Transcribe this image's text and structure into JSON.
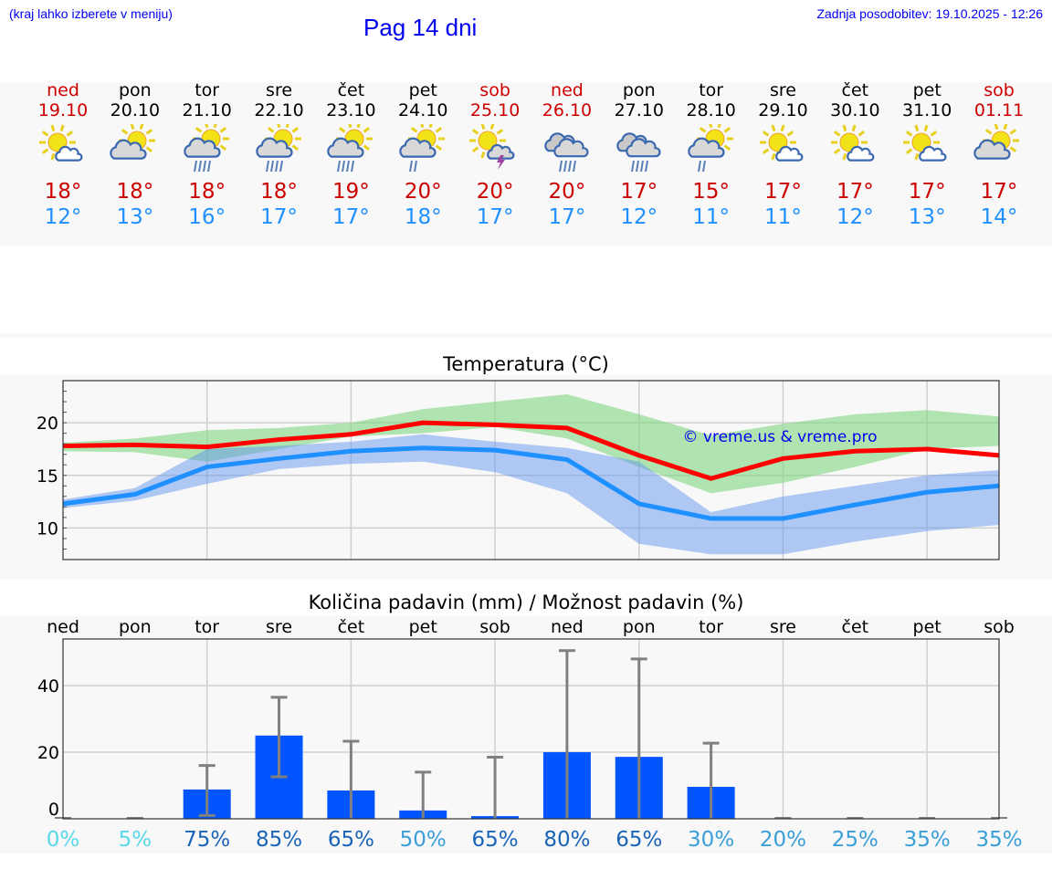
{
  "header": {
    "hint": "(kraj lahko izberete v meniju)",
    "title": "Pag 14 dni",
    "updated": "Zadnja posodobitev: 19.10.2025 - 12:26"
  },
  "days": [
    {
      "name": "ned",
      "date": "19.10",
      "icon": "sun-cloud-small",
      "max": "18°",
      "min": "12°",
      "weekend": true
    },
    {
      "name": "pon",
      "date": "20.10",
      "icon": "cloud-sun",
      "max": "18°",
      "min": "13°",
      "weekend": false
    },
    {
      "name": "tor",
      "date": "21.10",
      "icon": "sun-cloud-rain-heavy",
      "max": "18°",
      "min": "16°",
      "weekend": false
    },
    {
      "name": "sre",
      "date": "22.10",
      "icon": "sun-cloud-rain-heavy",
      "max": "18°",
      "min": "17°",
      "weekend": false
    },
    {
      "name": "čet",
      "date": "23.10",
      "icon": "sun-cloud-rain-heavy",
      "max": "19°",
      "min": "17°",
      "weekend": false
    },
    {
      "name": "pet",
      "date": "24.10",
      "icon": "sun-cloud-rain-light",
      "max": "20°",
      "min": "18°",
      "weekend": false
    },
    {
      "name": "sob",
      "date": "25.10",
      "icon": "sun-thunder",
      "max": "20°",
      "min": "17°",
      "weekend": true
    },
    {
      "name": "ned",
      "date": "26.10",
      "icon": "overcast-rain",
      "max": "20°",
      "min": "17°",
      "weekend": true
    },
    {
      "name": "pon",
      "date": "27.10",
      "icon": "overcast-rain",
      "max": "17°",
      "min": "12°",
      "weekend": false
    },
    {
      "name": "tor",
      "date": "28.10",
      "icon": "sun-cloud-rain-light",
      "max": "15°",
      "min": "11°",
      "weekend": false
    },
    {
      "name": "sre",
      "date": "29.10",
      "icon": "sun-cloud-small",
      "max": "17°",
      "min": "11°",
      "weekend": false
    },
    {
      "name": "čet",
      "date": "30.10",
      "icon": "sun-cloud-small",
      "max": "17°",
      "min": "12°",
      "weekend": false
    },
    {
      "name": "pet",
      "date": "31.10",
      "icon": "sun-cloud-small",
      "max": "17°",
      "min": "13°",
      "weekend": false
    },
    {
      "name": "sob",
      "date": "01.11",
      "icon": "cloud-sun",
      "max": "17°",
      "min": "14°",
      "weekend": true
    }
  ],
  "chart_data": [
    {
      "type": "line",
      "title": "Temperatura (°C)",
      "ylim": [
        7,
        24
      ],
      "yticks": [
        10,
        15,
        20
      ],
      "watermark": "© vreme.us & vreme.pro",
      "series": [
        {
          "name": "max",
          "color": "#ff0000",
          "values": [
            17.8,
            17.9,
            17.7,
            18.4,
            18.9,
            20.0,
            19.8,
            19.5,
            16.9,
            14.7,
            16.6,
            17.3,
            17.5,
            16.9
          ],
          "band_high": [
            18.1,
            18.5,
            19.3,
            19.5,
            20.0,
            21.3,
            22.0,
            22.7,
            20.8,
            18.8,
            19.9,
            20.8,
            21.2,
            20.6
          ],
          "band_low": [
            17.3,
            17.2,
            16.3,
            17.5,
            18.7,
            19.0,
            19.6,
            18.5,
            15.8,
            13.3,
            14.3,
            15.8,
            17.5,
            17.8
          ],
          "band_color": "#7fd67f"
        },
        {
          "name": "min",
          "color": "#1e90ff",
          "values": [
            12.3,
            13.2,
            15.8,
            16.6,
            17.3,
            17.6,
            17.4,
            16.5,
            12.3,
            10.9,
            10.9,
            12.2,
            13.4,
            14.0
          ],
          "band_high": [
            12.7,
            13.8,
            17.5,
            17.8,
            18.2,
            18.9,
            18.2,
            17.6,
            16.3,
            11.5,
            13.0,
            14.0,
            15.0,
            15.5
          ],
          "band_low": [
            11.9,
            12.6,
            14.2,
            15.6,
            16.1,
            16.3,
            15.3,
            13.3,
            8.5,
            7.5,
            7.5,
            8.7,
            9.7,
            10.3
          ],
          "band_color": "#6495ed"
        }
      ]
    },
    {
      "type": "bar",
      "title": "Količina padavin (mm) / Možnost padavin (%)",
      "ylim": [
        0,
        54
      ],
      "yticks": [
        0,
        20,
        40
      ],
      "categories": [
        "ned",
        "pon",
        "tor",
        "sre",
        "čet",
        "pet",
        "sob",
        "ned",
        "pon",
        "tor",
        "sre",
        "čet",
        "pet",
        "sob"
      ],
      "values": [
        0,
        0,
        8.8,
        25,
        8.5,
        2.5,
        0.8,
        20,
        18.6,
        9.6,
        0,
        0,
        0,
        0
      ],
      "err_low": [
        0,
        0,
        1,
        12.6,
        0,
        0,
        0,
        0,
        0,
        0,
        0,
        0,
        0,
        0
      ],
      "err_high": [
        0,
        0,
        16,
        36.5,
        23.3,
        14,
        18.5,
        50.5,
        48,
        22.7,
        0,
        0,
        0,
        0
      ],
      "probability": [
        "0%",
        "5%",
        "75%",
        "85%",
        "65%",
        "50%",
        "65%",
        "80%",
        "65%",
        "30%",
        "20%",
        "25%",
        "35%",
        "35%"
      ],
      "probability_values": [
        0,
        5,
        75,
        85,
        65,
        50,
        65,
        80,
        65,
        30,
        20,
        25,
        35,
        35
      ],
      "bar_color": "#0055ff"
    }
  ]
}
